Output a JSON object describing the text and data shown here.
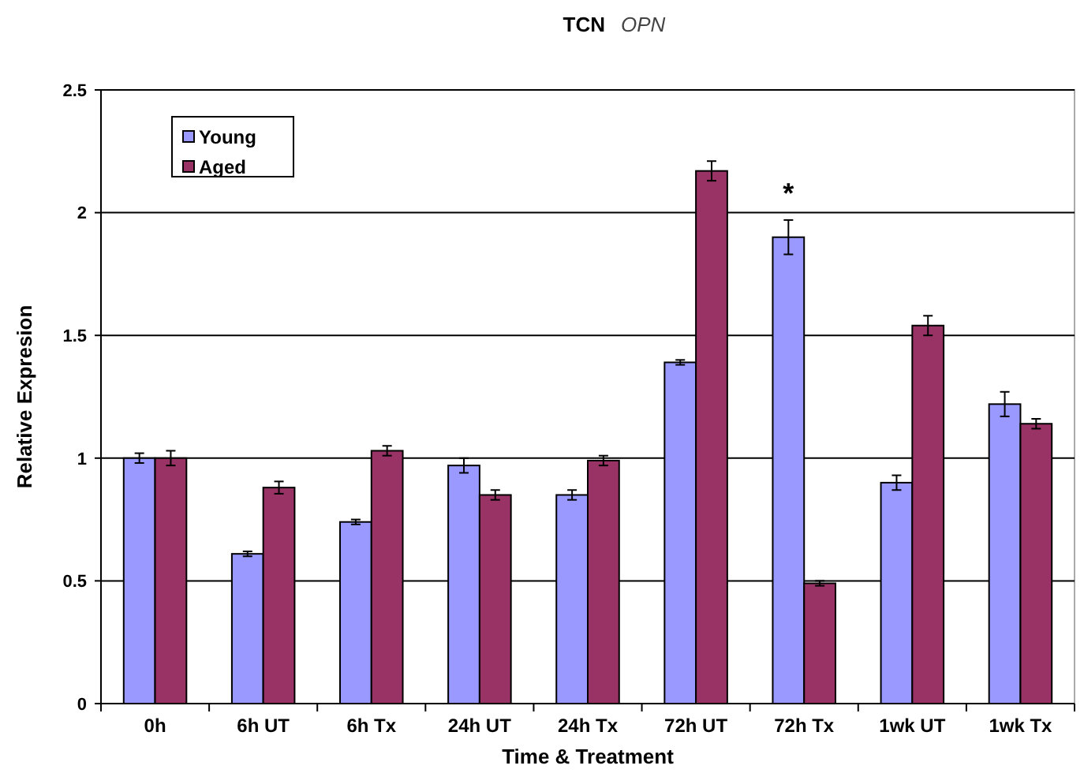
{
  "chart_data": {
    "type": "bar",
    "title": "TCN",
    "subtitle": "OPN",
    "xlabel": "Time & Treatment",
    "ylabel": "Relative Expresion",
    "categories": [
      "0h",
      "6h UT",
      "6h Tx",
      "24h UT",
      "24h Tx",
      "72h UT",
      "72h Tx",
      "1wk UT",
      "1wk Tx"
    ],
    "series": [
      {
        "name": "Young",
        "color": "#9999ff",
        "values": [
          1.0,
          0.61,
          0.74,
          0.97,
          0.85,
          1.39,
          1.9,
          0.9,
          1.22
        ],
        "errors": [
          0.02,
          0.01,
          0.01,
          0.03,
          0.02,
          0.01,
          0.07,
          0.03,
          0.05
        ]
      },
      {
        "name": "Aged",
        "color": "#993366",
        "values": [
          1.0,
          0.88,
          1.03,
          0.85,
          0.99,
          2.17,
          0.49,
          1.54,
          1.14
        ],
        "errors": [
          0.03,
          0.025,
          0.02,
          0.02,
          0.02,
          0.04,
          0.01,
          0.04,
          0.02
        ]
      }
    ],
    "ylim": [
      0,
      2.5
    ],
    "yticks": [
      0,
      0.5,
      1,
      1.5,
      2,
      2.5
    ],
    "grid": "y",
    "legend": "top left",
    "annotations": [
      {
        "text": "*",
        "x": "72h Tx",
        "y": 1.9
      }
    ]
  }
}
